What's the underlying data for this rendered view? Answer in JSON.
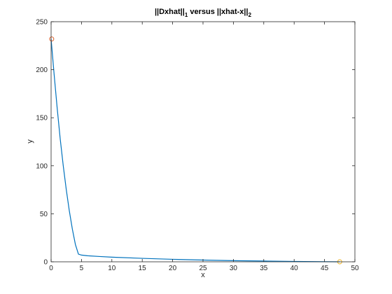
{
  "chart_data": {
    "type": "line",
    "title": {
      "text_1": "||Dxhat||",
      "sub_1": "1",
      "text_2": " versus ||xhat-x||",
      "sub_2": "2"
    },
    "xlabel": "x",
    "ylabel": "y",
    "xlim": [
      0,
      50
    ],
    "ylim": [
      0,
      250
    ],
    "xticks": [
      0,
      5,
      10,
      15,
      20,
      25,
      30,
      35,
      40,
      45,
      50
    ],
    "yticks": [
      0,
      50,
      100,
      150,
      200,
      250
    ],
    "grid": false,
    "series": [
      {
        "x": [
          0,
          0.5,
          1,
          1.5,
          2,
          2.5,
          3,
          3.5,
          4,
          4.5,
          5,
          6,
          8,
          10,
          15,
          20,
          25,
          30,
          35,
          40,
          45,
          47.5
        ],
        "y": [
          232,
          195,
          160,
          128,
          100,
          75,
          53,
          34,
          18,
          8,
          7,
          6.3,
          5.5,
          4.8,
          3.6,
          2.6,
          1.8,
          1.2,
          0.8,
          0.4,
          0.15,
          0
        ]
      }
    ],
    "markers": [
      {
        "x": 0.1,
        "y": 232,
        "color": "#d95319"
      },
      {
        "x": 47.5,
        "y": 0,
        "color": "#edb120"
      }
    ],
    "line_color": "#0072bd"
  }
}
